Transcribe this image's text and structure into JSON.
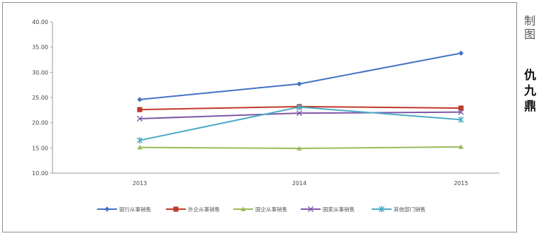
{
  "chart_data": {
    "type": "line",
    "x": [
      "2013",
      "2014",
      "2015"
    ],
    "y_ticks": [
      "40.00",
      "35.00",
      "30.00",
      "25.00",
      "20.00",
      "15.00",
      "10.00"
    ],
    "ylim": [
      10,
      40
    ],
    "grid": false,
    "legend_position": "bottom",
    "series": [
      {
        "name": "银行从事销售",
        "color": "#4472c4",
        "marker": "diamond",
        "values": [
          24.6,
          27.7,
          33.8
        ]
      },
      {
        "name": "外企从事销售",
        "color": "#c0392b",
        "marker": "square",
        "values": [
          22.6,
          23.2,
          22.9
        ]
      },
      {
        "name": "国企从事销售",
        "color": "#9bbb59",
        "marker": "triangle",
        "values": [
          15.1,
          14.9,
          15.2
        ]
      },
      {
        "name": "国家从事销售",
        "color": "#7e57a8",
        "marker": "x",
        "values": [
          20.8,
          21.9,
          22.1
        ]
      },
      {
        "name": "其他部门销售",
        "color": "#4bacc6",
        "marker": "star",
        "values": [
          16.5,
          23.1,
          20.6
        ]
      }
    ]
  },
  "side_text": {
    "credit": "制图",
    "author": "仇九鼎"
  }
}
